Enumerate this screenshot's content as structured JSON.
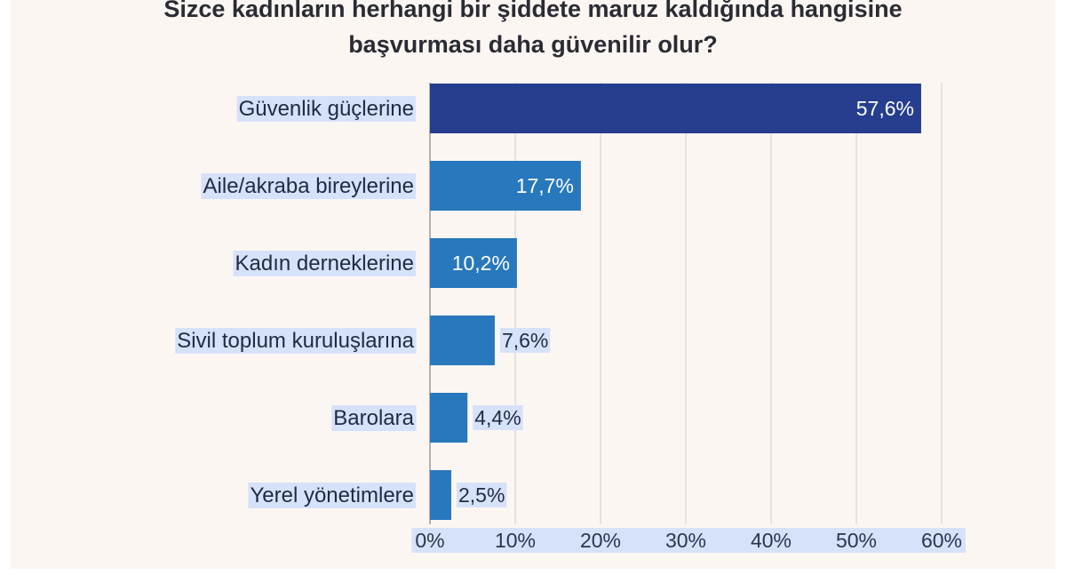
{
  "chart_data": {
    "type": "bar",
    "orientation": "horizontal",
    "title_lines": [
      "Sizce kadınların herhangi bir şiddete maruz kaldığında hangisine",
      "başvurması daha güvenilir olur?"
    ],
    "categories": [
      "Güvenlik güçlerine",
      "Aile/akraba bireylerine",
      "Kadın derneklerine",
      "Sivil toplum kuruluşlarına",
      "Barolara",
      "Yerel yönetimlere"
    ],
    "values": [
      57.6,
      17.7,
      10.2,
      7.6,
      4.4,
      2.5
    ],
    "value_labels": [
      "57,6%",
      "17,7%",
      "10,2%",
      "7,6%",
      "4,4%",
      "2,5%"
    ],
    "xlim": [
      0,
      60
    ],
    "x_ticks": [
      0,
      10,
      20,
      30,
      40,
      50,
      60
    ],
    "x_tick_labels": [
      "0%",
      "10%",
      "20%",
      "30%",
      "40%",
      "50%",
      "60%"
    ],
    "grid": "vertical",
    "colors": {
      "first_bar": "#263e8d",
      "bar": "#2878bd",
      "label_highlight": "#d6e2fa",
      "grid": "#dcdcdc"
    }
  }
}
